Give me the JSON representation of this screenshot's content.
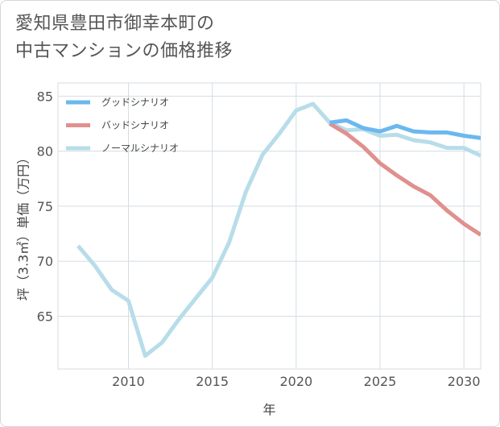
{
  "title": {
    "line1": "愛知県豊田市御幸本町の",
    "line2": "中古マンションの価格推移"
  },
  "chart_data": {
    "type": "line",
    "xlabel": "年",
    "ylabel": "坪（3.3㎡）単価（万円）",
    "xlim": [
      2005.8,
      2031
    ],
    "ylim": [
      60.2,
      86.2
    ],
    "x_ticks": [
      2010,
      2015,
      2020,
      2025,
      2030
    ],
    "y_ticks": [
      65,
      70,
      75,
      80,
      85
    ],
    "grid": true,
    "legend_position": "top-left",
    "series": [
      {
        "name": "グッドシナリオ",
        "color": "#6cb8ee",
        "x": [
          2022,
          2023,
          2024,
          2025,
          2026,
          2027,
          2028,
          2029,
          2030,
          2031
        ],
        "y": [
          82.6,
          82.8,
          82.1,
          81.8,
          82.3,
          81.8,
          81.7,
          81.7,
          81.4,
          81.2
        ]
      },
      {
        "name": "バッドシナリオ",
        "color": "#e0908e",
        "x": [
          2022,
          2023,
          2024,
          2025,
          2026,
          2027,
          2028,
          2029,
          2030,
          2031
        ],
        "y": [
          82.5,
          81.6,
          80.4,
          78.9,
          77.8,
          76.8,
          76.0,
          74.6,
          73.4,
          72.4
        ]
      },
      {
        "name": "ノーマルシナリオ",
        "color": "#b7dde9",
        "x": [
          2007,
          2008,
          2009,
          2010,
          2011,
          2012,
          2013,
          2014,
          2015,
          2016,
          2017,
          2018,
          2019,
          2020,
          2021,
          2022,
          2023,
          2024,
          2025,
          2026,
          2027,
          2028,
          2029,
          2030,
          2031
        ],
        "y": [
          71.4,
          69.6,
          67.4,
          66.4,
          61.4,
          62.6,
          64.7,
          66.6,
          68.5,
          71.7,
          76.3,
          79.7,
          81.6,
          83.7,
          84.3,
          82.6,
          81.9,
          82.0,
          81.4,
          81.5,
          81.0,
          80.8,
          80.3,
          80.3,
          79.6
        ]
      }
    ]
  }
}
